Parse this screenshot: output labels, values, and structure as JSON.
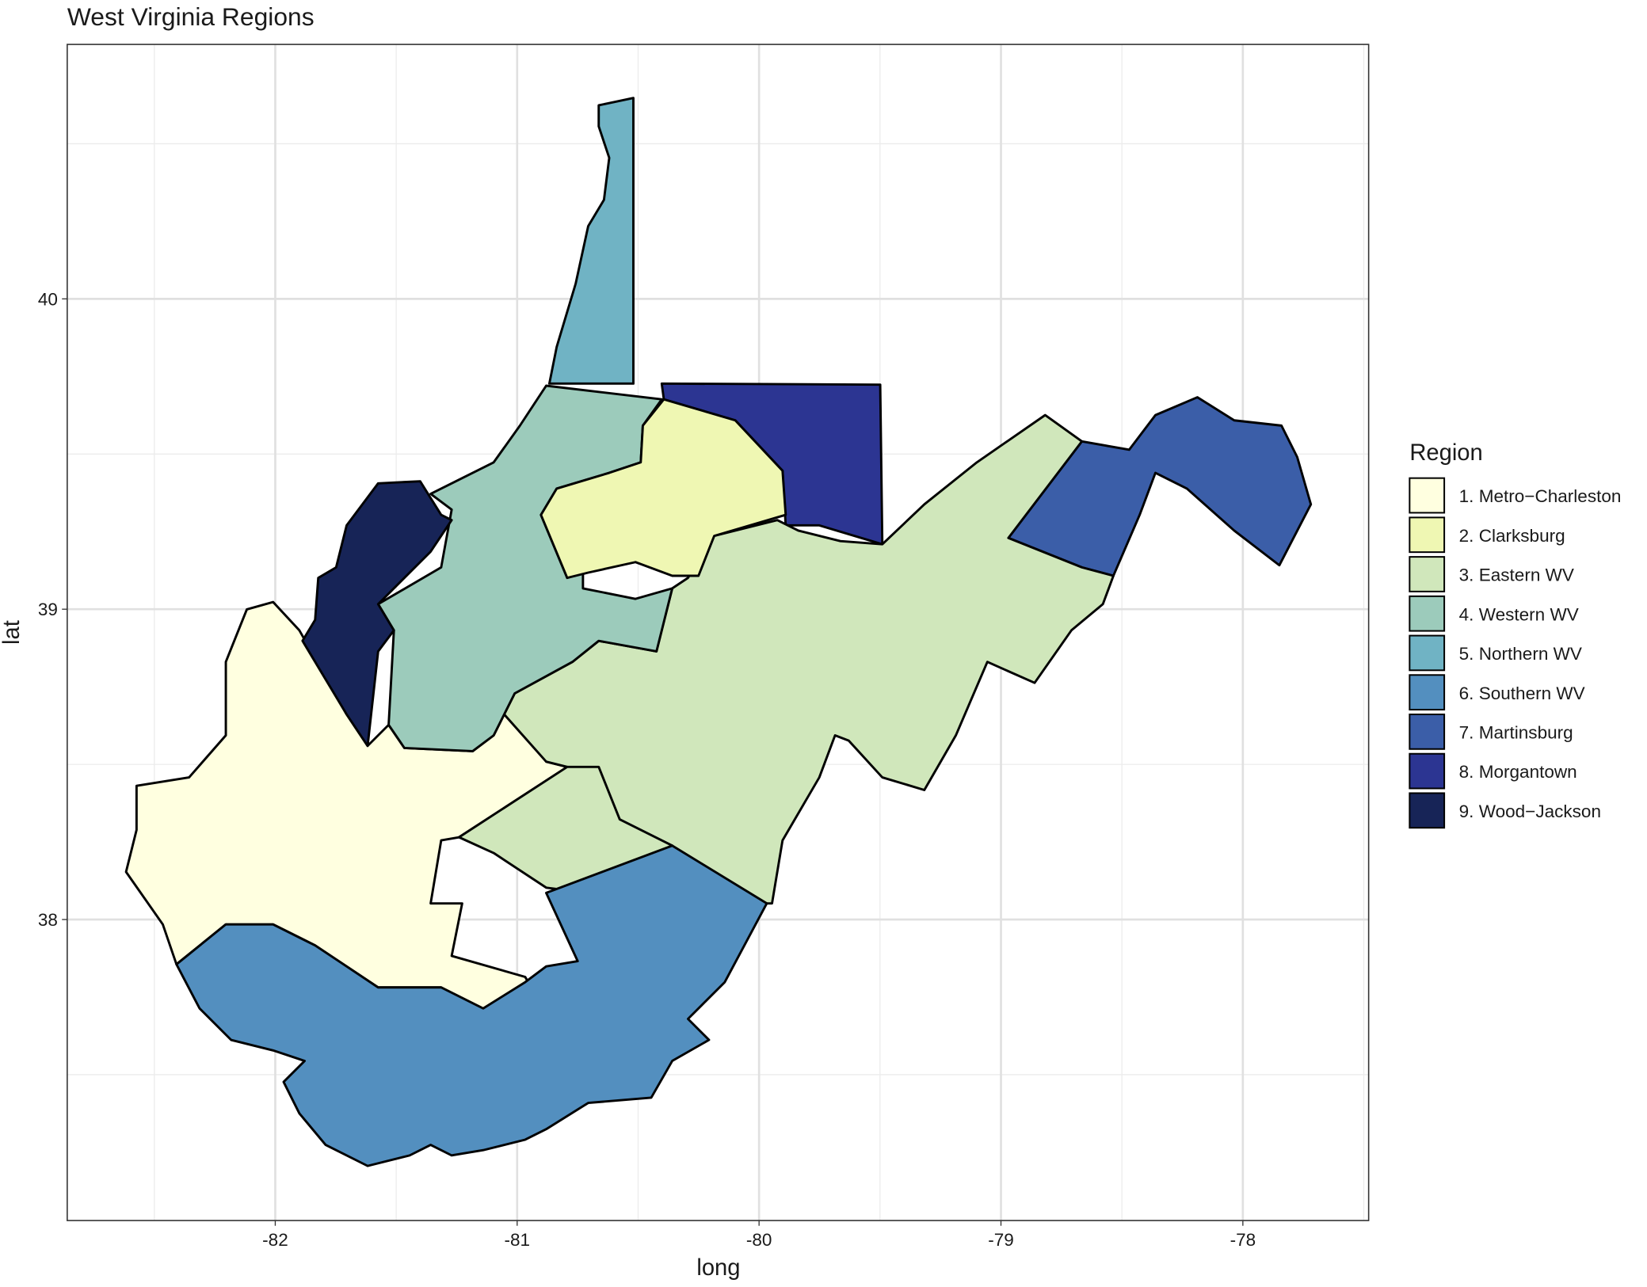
{
  "chart_data": {
    "type": "map",
    "title": "West Virginia Regions",
    "x_label": "long",
    "y_label": "lat",
    "xlim": [
      -82.86,
      -77.48
    ],
    "ylim": [
      37.03,
      40.82
    ],
    "xticks": [
      -82,
      -81,
      -80,
      -79,
      -78
    ],
    "yticks": [
      38,
      39,
      40
    ],
    "grid": true,
    "legend": {
      "title": "Region",
      "position": "right"
    },
    "regions": [
      {
        "name": "1. Metro−Charleston",
        "color": "#ffffe0"
      },
      {
        "name": "2. Clarksburg",
        "color": "#eff7b3"
      },
      {
        "name": "3. Eastern WV",
        "color": "#d0e7bb"
      },
      {
        "name": "4. Western WV",
        "color": "#9ccbbb"
      },
      {
        "name": "5. Northern WV",
        "color": "#70b3c4"
      },
      {
        "name": "6. Southern WV",
        "color": "#538fbf"
      },
      {
        "name": "7. Martinsburg",
        "color": "#3b5ea8"
      },
      {
        "name": "8. Morgantown",
        "color": "#2c3592"
      },
      {
        "name": "9. Wood−Jackson",
        "color": "#172457"
      }
    ]
  }
}
